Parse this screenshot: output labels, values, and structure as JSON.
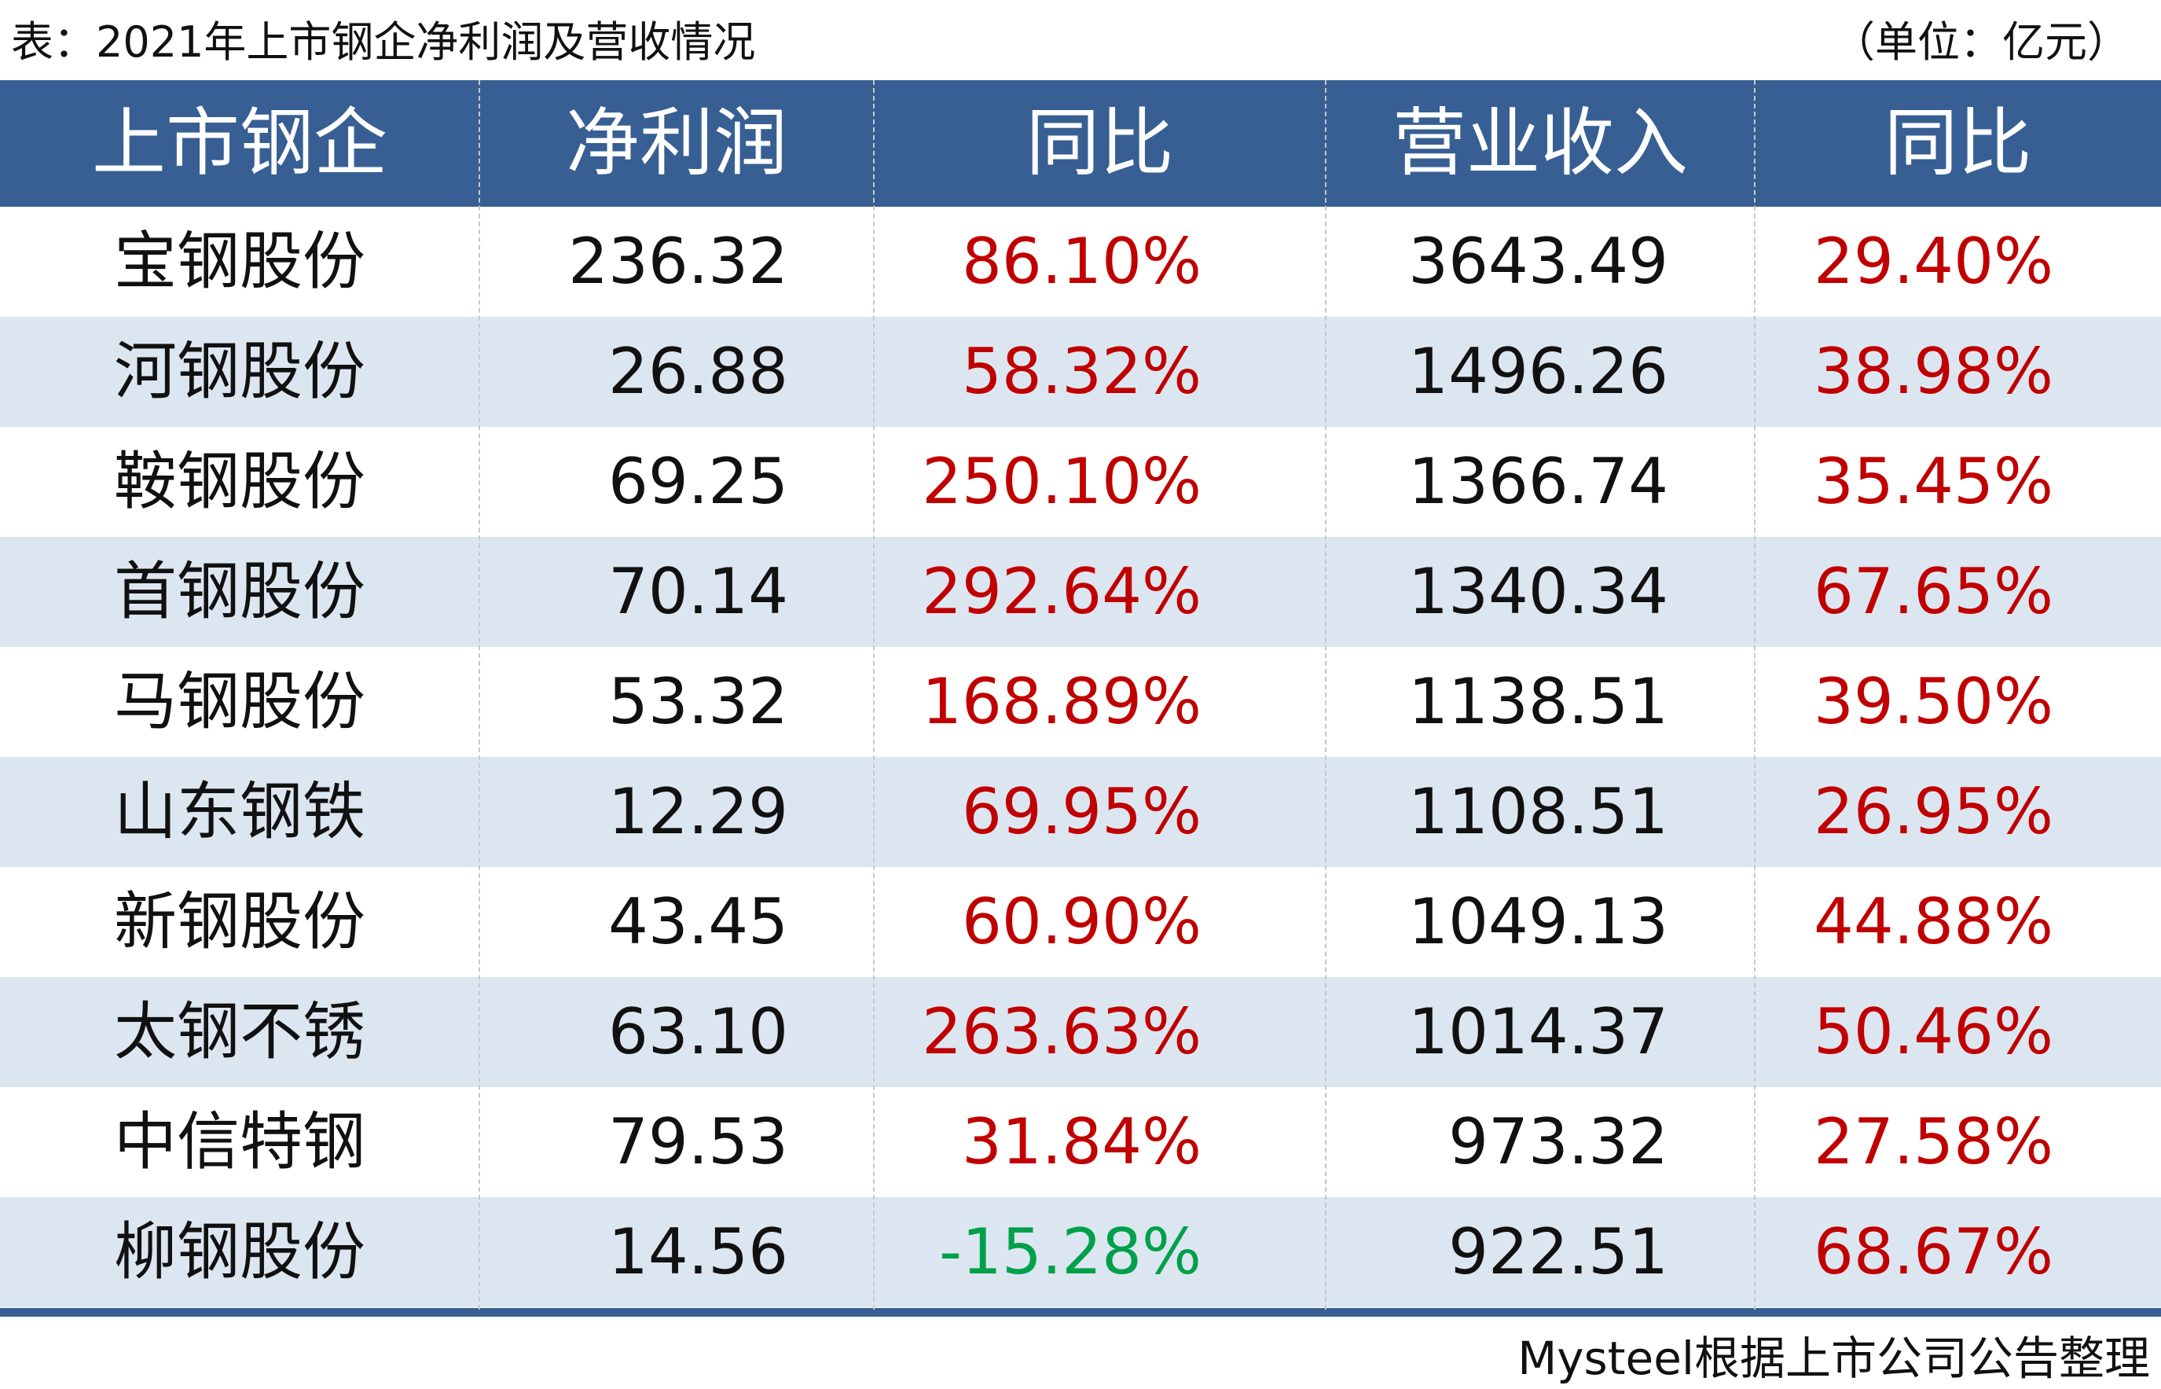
{
  "header": {
    "title": "表：2021年上市钢企净利润及营收情况",
    "unit": "（单位：亿元）"
  },
  "table": {
    "columns": [
      "上市钢企",
      "净利润",
      "同比",
      "营业收入",
      "同比"
    ],
    "rows": [
      [
        "宝钢股份",
        "236.32",
        "86.10%",
        "3643.49",
        "29.40%"
      ],
      [
        "河钢股份",
        "26.88",
        "58.32%",
        "1496.26",
        "38.98%"
      ],
      [
        "鞍钢股份",
        "69.25",
        "250.10%",
        "1366.74",
        "35.45%"
      ],
      [
        "首钢股份",
        "70.14",
        "292.64%",
        "1340.34",
        "67.65%"
      ],
      [
        "马钢股份",
        "53.32",
        "168.89%",
        "1138.51",
        "39.50%"
      ],
      [
        "山东钢铁",
        "12.29",
        "69.95%",
        "1108.51",
        "26.95%"
      ],
      [
        "新钢股份",
        "43.45",
        "60.90%",
        "1049.13",
        "44.88%"
      ],
      [
        "太钢不锈",
        "63.10",
        "263.63%",
        "1014.37",
        "50.46%"
      ],
      [
        "中信特钢",
        "79.53",
        "31.84%",
        "973.32",
        "27.58%"
      ],
      [
        "柳钢股份",
        "14.56",
        "-15.28%",
        "922.51",
        "68.67%"
      ]
    ],
    "positive_color": "#c00000",
    "negative_color": "#00a04a"
  },
  "footer": {
    "source": "Mysteel根据上市公司公告整理"
  }
}
